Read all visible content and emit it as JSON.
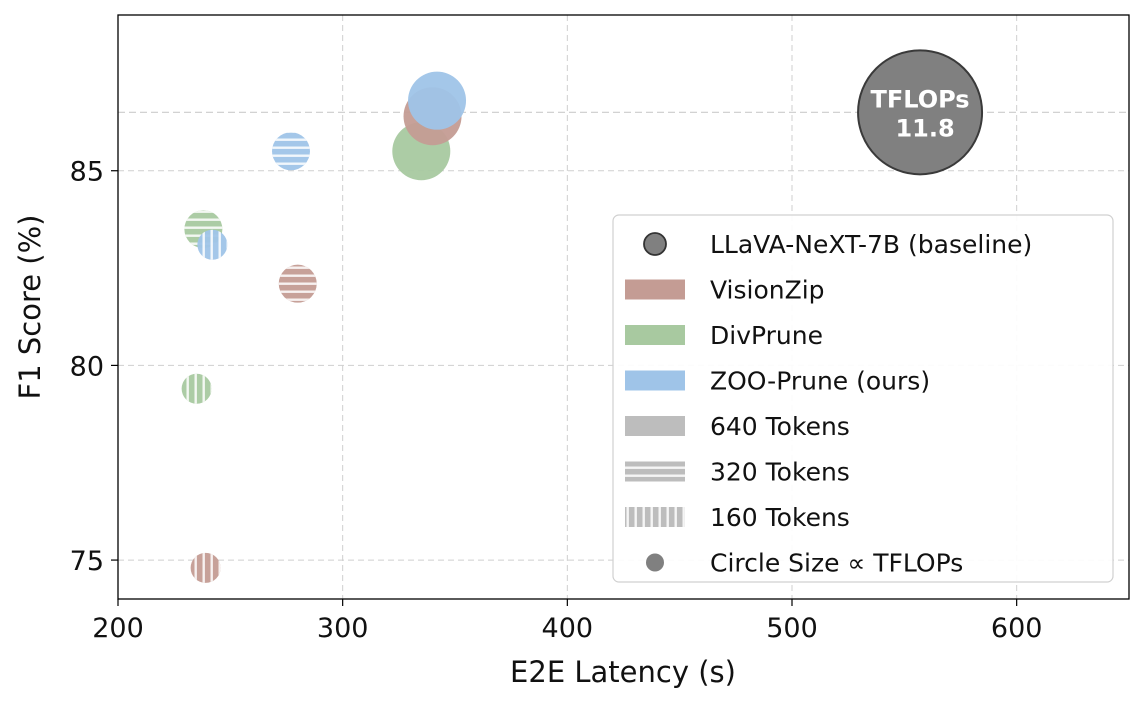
{
  "chart_data": {
    "type": "scatter",
    "xlabel": "E2E Latency (s)",
    "ylabel": "F1 Score (%)",
    "xlim": [
      200,
      650
    ],
    "ylim": [
      74,
      89
    ],
    "xticks": [
      200,
      300,
      400,
      500,
      600
    ],
    "yticks": [
      75,
      80,
      85
    ],
    "grid": true,
    "baseline": {
      "name": "LLaVA-NeXT-7B (baseline)",
      "x": 557,
      "y": 86.5,
      "tflops": 11.8,
      "label_line1": "TFLOPs",
      "label_line2": "11.8",
      "color": "#808080"
    },
    "series": [
      {
        "name": "VisionZip",
        "color": "#c49c94",
        "points": [
          {
            "x": 340,
            "y": 86.4,
            "tokens": 640
          },
          {
            "x": 280,
            "y": 82.1,
            "tokens": 320
          },
          {
            "x": 239,
            "y": 74.8,
            "tokens": 160
          }
        ]
      },
      {
        "name": "DivPrune",
        "color": "#a8c9a0",
        "points": [
          {
            "x": 335,
            "y": 85.5,
            "tokens": 640
          },
          {
            "x": 238,
            "y": 83.5,
            "tokens": 320
          },
          {
            "x": 235,
            "y": 79.4,
            "tokens": 160
          }
        ]
      },
      {
        "name": "ZOO-Prune (ours)",
        "color": "#9fc4e8",
        "points": [
          {
            "x": 342,
            "y": 86.8,
            "tokens": 640
          },
          {
            "x": 277,
            "y": 85.5,
            "tokens": 320
          },
          {
            "x": 242,
            "y": 83.1,
            "tokens": 160
          }
        ]
      }
    ],
    "legend": {
      "location": "center-right",
      "entries": [
        {
          "label": "LLaVA-NeXT-7B (baseline)",
          "kind": "baseline"
        },
        {
          "label": "VisionZip",
          "kind": "series",
          "color": "#c49c94"
        },
        {
          "label": "DivPrune",
          "kind": "series",
          "color": "#a8c9a0"
        },
        {
          "label": "ZOO-Prune (ours)",
          "kind": "series",
          "color": "#9fc4e8"
        },
        {
          "label": "640 Tokens",
          "kind": "tokens",
          "tokens": 640
        },
        {
          "label": "320 Tokens",
          "kind": "tokens",
          "tokens": 320
        },
        {
          "label": "160 Tokens",
          "kind": "tokens",
          "tokens": 160
        },
        {
          "label": "Circle Size ∝ TFLOPs",
          "kind": "size"
        }
      ]
    }
  }
}
